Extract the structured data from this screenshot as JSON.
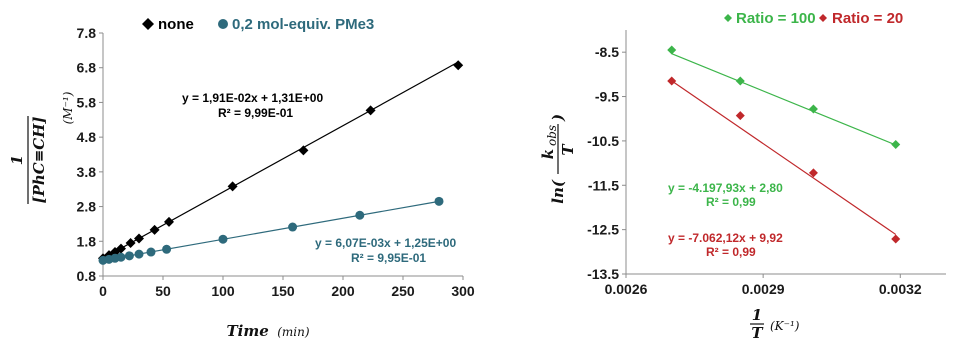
{
  "chart_data": [
    {
      "type": "scatter",
      "title": "",
      "xlabel": "Time (min)",
      "ylabel": "1/[PhC≡CH] (M⁻¹)",
      "ylabel_parts": {
        "num": "1",
        "den": "[PhC≡CH]",
        "unit": "(M⁻¹)"
      },
      "xlabel_parts": {
        "main": "Time",
        "unit": "(min)"
      },
      "xlim": [
        0,
        300
      ],
      "ylim": [
        0.8,
        7.8
      ],
      "xticks": [
        0,
        50,
        100,
        150,
        200,
        250,
        300
      ],
      "yticks": [
        "0.8",
        "1.8",
        "2.8",
        "3.8",
        "4.8",
        "5.8",
        "6.8",
        "7.8"
      ],
      "grid": false,
      "legend_position": "top-left",
      "series": [
        {
          "name": "none",
          "color": "#000000",
          "marker": "diamond",
          "x": [
            0,
            5,
            10,
            15,
            23,
            30,
            43,
            55,
            108,
            167,
            223,
            296
          ],
          "y": [
            1.31,
            1.4,
            1.49,
            1.59,
            1.75,
            1.88,
            2.13,
            2.36,
            3.38,
            4.42,
            5.57,
            6.87
          ],
          "fit": {
            "slope": 0.0191,
            "intercept": 1.31,
            "x_range": [
              0,
              296
            ]
          },
          "equation": "y = 1,91E-02x  + 1,31E+00",
          "r2": "R² = 9,99E-01"
        },
        {
          "name": "0,2 mol-equiv. PMe3",
          "color": "#2E6A7C",
          "marker": "circle",
          "x": [
            0,
            5,
            10,
            15,
            22,
            30,
            40,
            53,
            100,
            158,
            214,
            280
          ],
          "y": [
            1.25,
            1.28,
            1.31,
            1.34,
            1.38,
            1.43,
            1.49,
            1.57,
            1.86,
            2.21,
            2.55,
            2.95
          ],
          "fit": {
            "slope": 0.00607,
            "intercept": 1.25,
            "x_range": [
              0,
              280
            ]
          },
          "equation": "y = 6,07E-03x  + 1,25E+00",
          "r2": "R² = 9,95E-01"
        }
      ]
    },
    {
      "type": "scatter",
      "title": "",
      "xlabel": "1/T (K⁻¹)",
      "ylabel": "ln(k_obs/T)",
      "ylabel_parts": {
        "prefix": "ln(",
        "num": "k",
        "sub": "obs",
        "den": "T",
        "suffix": ")"
      },
      "xlabel_parts": {
        "num": "1",
        "den": "T",
        "unit": "(K⁻¹)"
      },
      "xlim": [
        0.0026,
        0.0033
      ],
      "ylim": [
        -13.5,
        -8.0
      ],
      "xticks": [
        "0.0026",
        "0.0029",
        "0.0032"
      ],
      "yticks": [
        "-8.5",
        "-9.5",
        "-10.5",
        "-11.5",
        "-12.5",
        "-13.5"
      ],
      "grid": false,
      "legend_position": "top",
      "series": [
        {
          "name": "Ratio = 100",
          "color": "#3CB54A",
          "marker": "diamond",
          "x": [
            0.0027,
            0.00285,
            0.00301,
            0.00319
          ],
          "y": [
            -8.45,
            -9.15,
            -9.78,
            -10.58
          ],
          "fit": {
            "slope": -4197.93,
            "intercept": 2.8,
            "x_range": [
              0.0027,
              0.00319
            ]
          },
          "equation": "y = -4.197,93x + 2,80",
          "r2": "R² = 0,99"
        },
        {
          "name": "Ratio = 20",
          "color": "#C0282B",
          "marker": "diamond",
          "x": [
            0.0027,
            0.00285,
            0.00301,
            0.00319
          ],
          "y": [
            -9.15,
            -9.93,
            -11.22,
            -12.71
          ],
          "fit": {
            "slope": -7062.12,
            "intercept": 9.92,
            "x_range": [
              0.0027,
              0.00319
            ]
          },
          "equation": "y = -7.062,12x + 9,92",
          "r2": "R² = 0,99"
        }
      ]
    }
  ]
}
